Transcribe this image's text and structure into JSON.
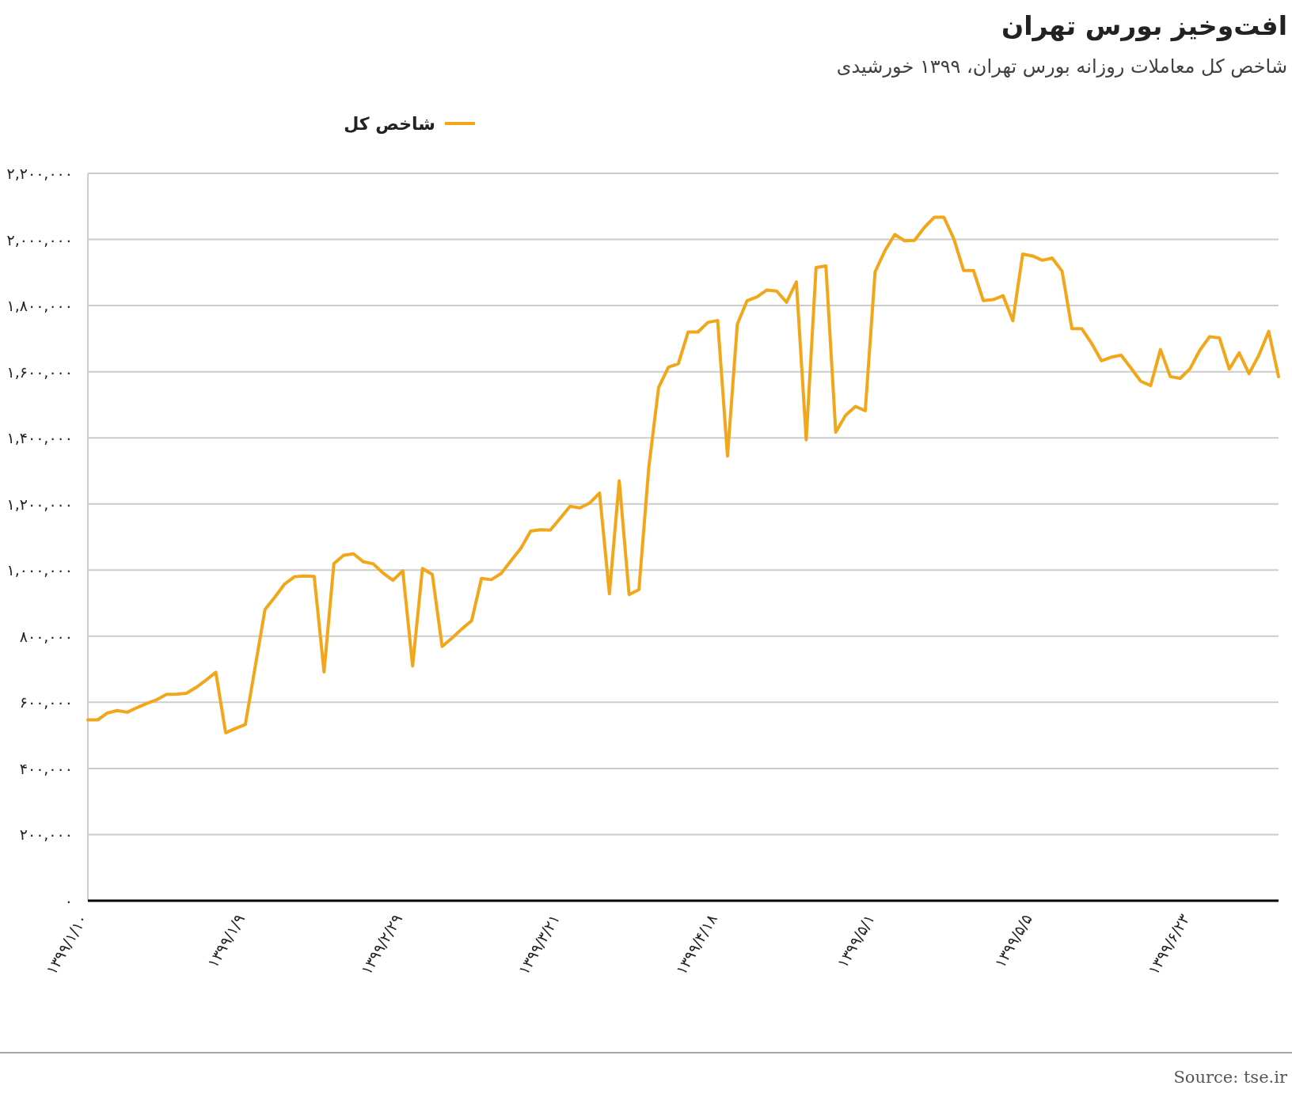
{
  "chart_data": {
    "type": "line",
    "title": "افت‌وخیز بورس تهران",
    "subtitle": "شاخص کل معاملات روزانه بورس تهران، ۱۳۹۹ خورشیدی",
    "categories": [
      "۱۳۹۹/۱/۱۰",
      null,
      null,
      null,
      null,
      null,
      null,
      null,
      null,
      null,
      null,
      null,
      null,
      null,
      null,
      null,
      "۱۳۹۹/۱/۹",
      null,
      null,
      null,
      null,
      null,
      null,
      null,
      null,
      null,
      null,
      null,
      null,
      null,
      null,
      null,
      "۱۳۹۹/۲/۲۹",
      null,
      null,
      null,
      null,
      null,
      null,
      null,
      null,
      null,
      null,
      null,
      null,
      null,
      null,
      null,
      "۱۳۹۹/۳/۲۱",
      null,
      null,
      null,
      null,
      null,
      null,
      null,
      null,
      null,
      null,
      null,
      null,
      null,
      null,
      null,
      "۱۳۹۹/۴/۱۸",
      null,
      null,
      null,
      null,
      null,
      null,
      null,
      null,
      null,
      null,
      null,
      null,
      null,
      null,
      null,
      "۱۳۹۹/۵/۱",
      null,
      null,
      null,
      null,
      null,
      null,
      null,
      null,
      null,
      null,
      null,
      null,
      null,
      null,
      null,
      "۱۳۹۹/۵/۵",
      null,
      null,
      null,
      null,
      null,
      null,
      null,
      null,
      null,
      null,
      null,
      null,
      null,
      null,
      null,
      "۱۳۹۹/۶/۲۳",
      null,
      null,
      null,
      null,
      null,
      null,
      null,
      null,
      null
    ],
    "series": [
      {
        "name": "شاخص کل",
        "color": "#f2a71b",
        "values": [
          547000,
          547000,
          568000,
          575000,
          570000,
          584000,
          597000,
          608000,
          624000,
          625000,
          627000,
          645000,
          667000,
          691000,
          508000,
          521000,
          533000,
          707000,
          881000,
          918000,
          958000,
          980000,
          982000,
          981000,
          692000,
          1020000,
          1045000,
          1049000,
          1025000,
          1019000,
          991000,
          969000,
          998000,
          710000,
          1005000,
          987000,
          769000,
          794000,
          822000,
          847000,
          975000,
          971000,
          990000,
          1028000,
          1066000,
          1118000,
          1122000,
          1121000,
          1157000,
          1193000,
          1188000,
          1203000,
          1233000,
          928000,
          1270000,
          926000,
          941000,
          1310000,
          1552000,
          1614000,
          1624000,
          1720000,
          1720000,
          1749000,
          1755000,
          1345000,
          1744000,
          1815000,
          1826000,
          1847000,
          1844000,
          1810000,
          1872000,
          1394000,
          1915000,
          1920000,
          1417000,
          1468000,
          1495000,
          1482000,
          1902000,
          1966000,
          2015000,
          1996000,
          1997000,
          2036000,
          2067000,
          2067000,
          2002000,
          1906000,
          1906000,
          1815000,
          1818000,
          1830000,
          1754000,
          1956000,
          1950000,
          1937000,
          1944000,
          1904000,
          1730000,
          1730000,
          1686000,
          1633000,
          1644000,
          1650000,
          1611000,
          1571000,
          1558000,
          1667000,
          1585000,
          1580000,
          1609000,
          1665000,
          1706000,
          1702000,
          1608000,
          1657000,
          1594000,
          1650000,
          1722000,
          1585000
        ]
      }
    ],
    "ylim": [
      0,
      2200000
    ],
    "yticks": [
      {
        "value": 0,
        "label": "۰"
      },
      {
        "value": 200000,
        "label": "۲۰۰,۰۰۰"
      },
      {
        "value": 400000,
        "label": "۴۰۰,۰۰۰"
      },
      {
        "value": 600000,
        "label": "۶۰۰,۰۰۰"
      },
      {
        "value": 800000,
        "label": "۸۰۰,۰۰۰"
      },
      {
        "value": 1000000,
        "label": "۱,۰۰۰,۰۰۰"
      },
      {
        "value": 1200000,
        "label": "۱,۲۰۰,۰۰۰"
      },
      {
        "value": 1400000,
        "label": "۱,۴۰۰,۰۰۰"
      },
      {
        "value": 1600000,
        "label": "۱,۶۰۰,۰۰۰"
      },
      {
        "value": 1800000,
        "label": "۱,۸۰۰,۰۰۰"
      },
      {
        "value": 2000000,
        "label": "۲,۰۰۰,۰۰۰"
      },
      {
        "value": 2200000,
        "label": "۲,۲۰۰,۰۰۰"
      }
    ],
    "grid": "y",
    "legend": "top left",
    "marker": "none",
    "line_style": "solid",
    "annotations": [
      "Source: tse.ir"
    ]
  }
}
